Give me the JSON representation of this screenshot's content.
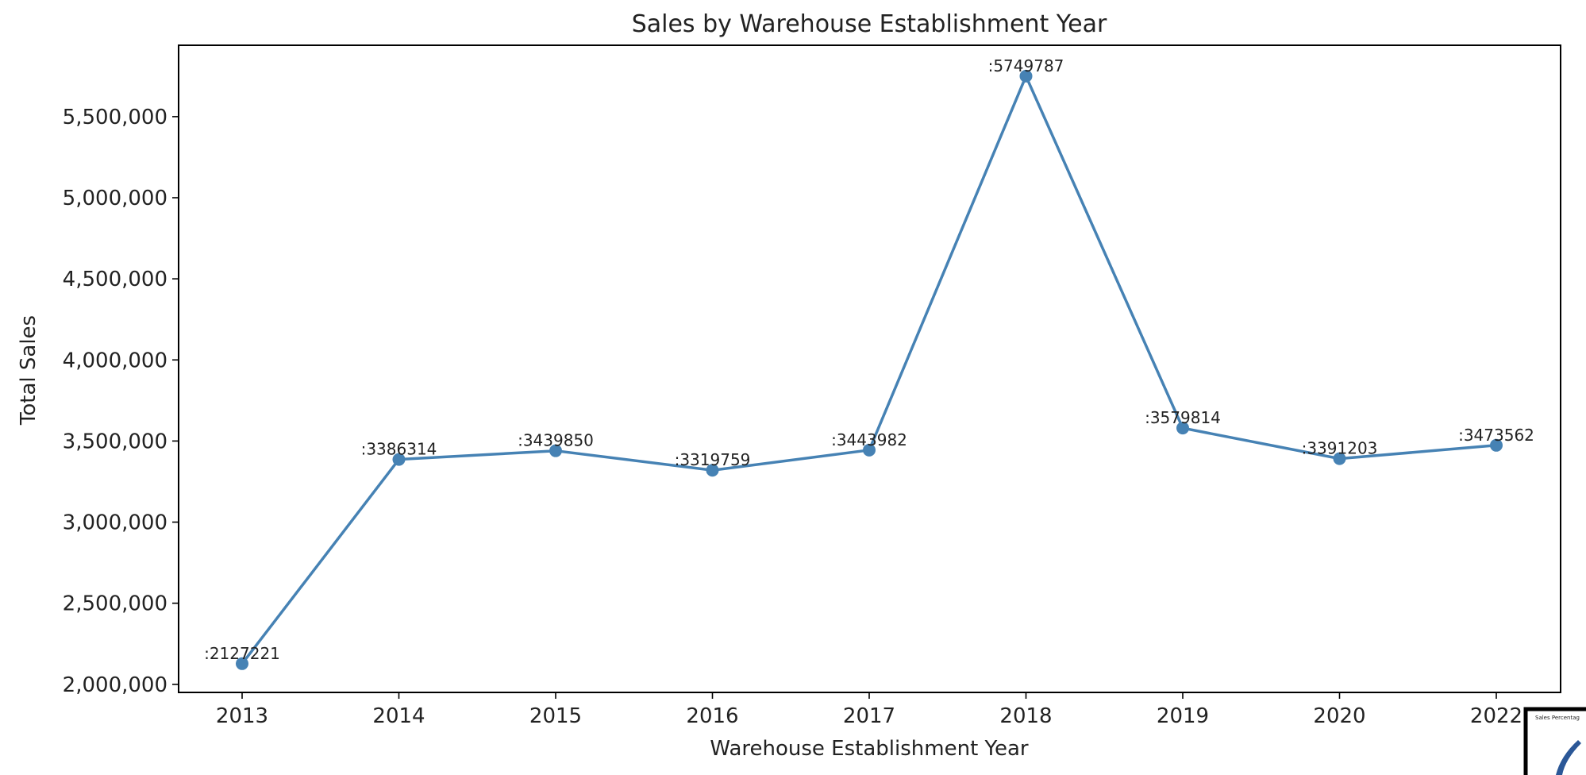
{
  "chart_data": {
    "type": "line",
    "title": "Sales by Warehouse Establishment Year",
    "xlabel": "Warehouse Establishment Year",
    "ylabel": "Total Sales",
    "categories": [
      "2013",
      "2014",
      "2015",
      "2016",
      "2017",
      "2018",
      "2019",
      "2020",
      "2022"
    ],
    "series": [
      {
        "values": [
          2127221,
          3386314,
          3439850,
          3319759,
          3443982,
          5749787,
          3579814,
          3391203,
          3473562
        ]
      }
    ],
    "data_labels": [
      ":2127221",
      ":3386314",
      ":3439850",
      ":3319759",
      ":3443982",
      ":5749787",
      ":3579814",
      ":3391203",
      ":3473562"
    ],
    "y_ticks": [
      2000000,
      2500000,
      3000000,
      3500000,
      4000000,
      4500000,
      5000000,
      5500000
    ],
    "y_tick_labels": [
      "2,000,000",
      "2,500,000",
      "3,000,000",
      "3,500,000",
      "4,000,000",
      "4,500,000",
      "5,000,000",
      "5,500,000"
    ],
    "ylim": [
      1950000,
      5940000
    ],
    "grid": false,
    "legend": "none",
    "colors": {
      "series": "#4682b4",
      "frame": "#000000"
    }
  },
  "inset": {
    "title_fragment": "Sales Percentag"
  }
}
